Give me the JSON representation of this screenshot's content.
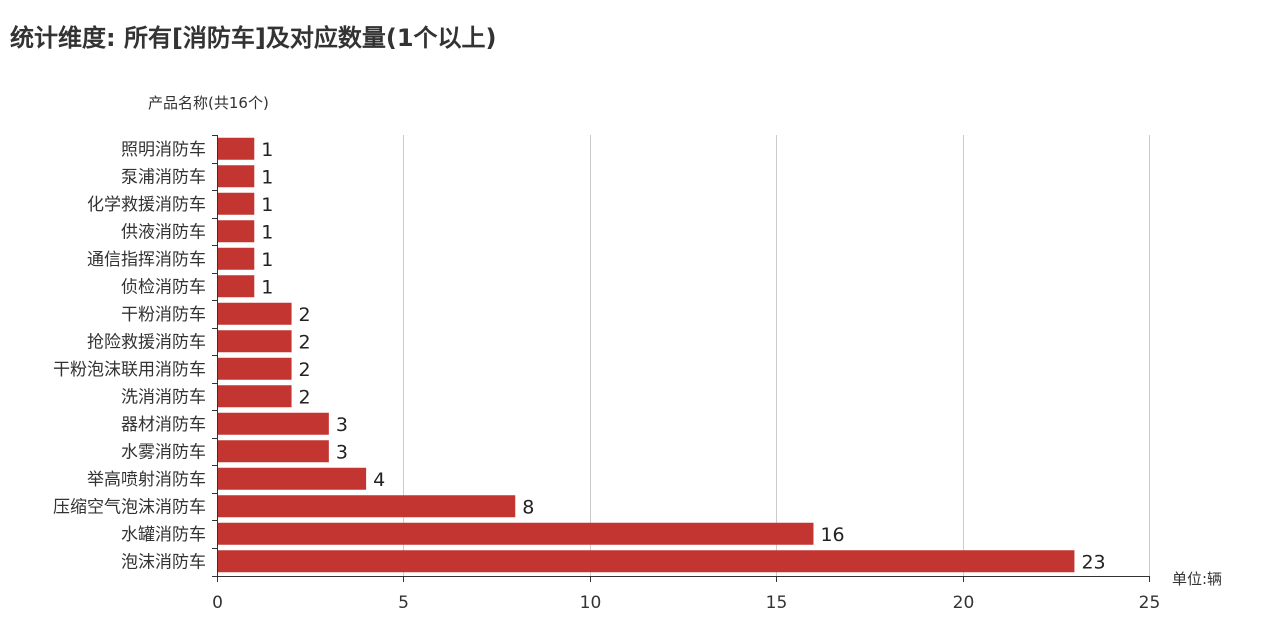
{
  "chart_data": {
    "type": "bar",
    "orientation": "horizontal",
    "title": "统计维度: 所有[消防车]及对应数量(1个以上)",
    "ylabel": "产品名称(共16个)",
    "unit_label": "单位:辆",
    "categories": [
      "照明消防车",
      "泵浦消防车",
      "化学救援消防车",
      "供液消防车",
      "通信指挥消防车",
      "侦检消防车",
      "干粉消防车",
      "抢险救援消防车",
      "干粉泡沫联用消防车",
      "洗消消防车",
      "器材消防车",
      "水雾消防车",
      "举高喷射消防车",
      "压缩空气泡沫消防车",
      "水罐消防车",
      "泡沫消防车"
    ],
    "values": [
      1,
      1,
      1,
      1,
      1,
      1,
      2,
      2,
      2,
      2,
      3,
      3,
      4,
      8,
      16,
      23
    ],
    "xlim": [
      0,
      25
    ],
    "xticks": [
      0,
      5,
      10,
      15,
      20,
      25
    ],
    "grid": true,
    "bar_color": "#c23531",
    "data_labels": true
  }
}
